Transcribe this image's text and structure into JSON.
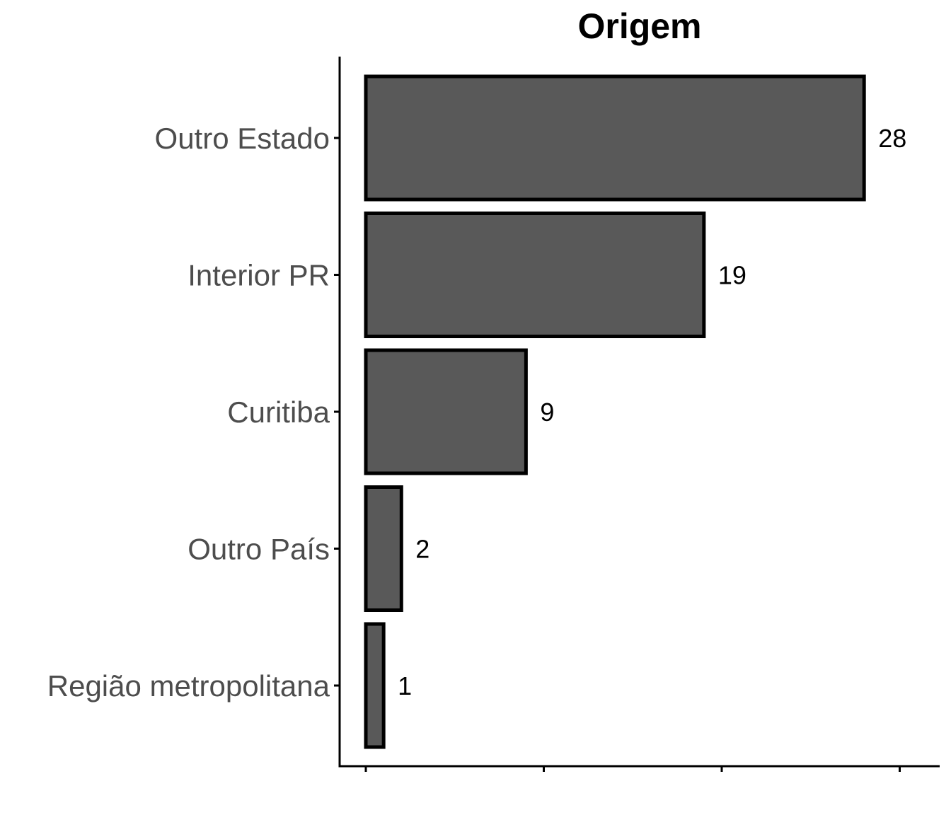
{
  "chart_data": {
    "type": "bar",
    "orientation": "horizontal",
    "title": "Origem",
    "xlabel": "",
    "ylabel": "",
    "categories": [
      "Outro Estado",
      "Interior PR",
      "Curitiba",
      "Outro País",
      "Região metropolitana"
    ],
    "values": [
      28,
      19,
      9,
      2,
      1
    ],
    "xlim": [
      0,
      30
    ],
    "x_ticks": [
      0,
      10,
      20,
      30
    ],
    "x_tick_labels_visible": false,
    "data_labels": true,
    "grid": false,
    "legend": "none",
    "colors": {
      "bar_fill": "#595959",
      "bar_stroke": "#000000",
      "axis": "#000000",
      "category_text": "#4d4d4d",
      "value_text": "#000000"
    }
  }
}
